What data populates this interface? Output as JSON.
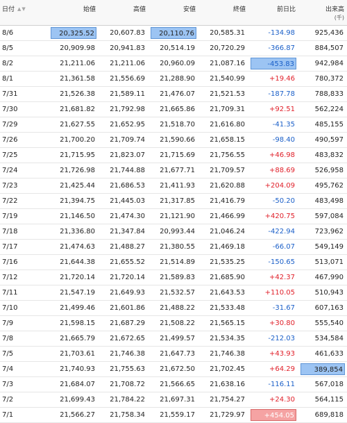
{
  "header": {
    "date": "日付",
    "open": "始値",
    "high": "高値",
    "low": "安値",
    "close": "終値",
    "change": "前日比",
    "volume": "出来高",
    "volume_unit": "(千)"
  },
  "rows": [
    {
      "date": "8/6",
      "open": "20,325.52",
      "high": "20,607.83",
      "low": "20,110.76",
      "close": "20,585.31",
      "change": "-134.98",
      "volume": "925,436"
    },
    {
      "date": "8/5",
      "open": "20,909.98",
      "high": "20,941.83",
      "low": "20,514.19",
      "close": "20,720.29",
      "change": "-366.87",
      "volume": "884,507"
    },
    {
      "date": "8/2",
      "open": "21,211.06",
      "high": "21,211.06",
      "low": "20,960.09",
      "close": "21,087.16",
      "change": "-453.83",
      "volume": "942,984"
    },
    {
      "date": "8/1",
      "open": "21,361.58",
      "high": "21,556.69",
      "low": "21,288.90",
      "close": "21,540.99",
      "change": "+19.46",
      "volume": "780,372"
    },
    {
      "date": "7/31",
      "open": "21,526.38",
      "high": "21,589.11",
      "low": "21,476.07",
      "close": "21,521.53",
      "change": "-187.78",
      "volume": "788,833"
    },
    {
      "date": "7/30",
      "open": "21,681.82",
      "high": "21,792.98",
      "low": "21,665.86",
      "close": "21,709.31",
      "change": "+92.51",
      "volume": "562,224"
    },
    {
      "date": "7/29",
      "open": "21,627.55",
      "high": "21,652.95",
      "low": "21,518.70",
      "close": "21,616.80",
      "change": "-41.35",
      "volume": "485,155"
    },
    {
      "date": "7/26",
      "open": "21,700.20",
      "high": "21,709.74",
      "low": "21,590.66",
      "close": "21,658.15",
      "change": "-98.40",
      "volume": "490,597"
    },
    {
      "date": "7/25",
      "open": "21,715.95",
      "high": "21,823.07",
      "low": "21,715.69",
      "close": "21,756.55",
      "change": "+46.98",
      "volume": "483,832"
    },
    {
      "date": "7/24",
      "open": "21,726.98",
      "high": "21,744.88",
      "low": "21,677.71",
      "close": "21,709.57",
      "change": "+88.69",
      "volume": "526,958"
    },
    {
      "date": "7/23",
      "open": "21,425.44",
      "high": "21,686.53",
      "low": "21,411.93",
      "close": "21,620.88",
      "change": "+204.09",
      "volume": "495,762"
    },
    {
      "date": "7/22",
      "open": "21,394.75",
      "high": "21,445.03",
      "low": "21,317.85",
      "close": "21,416.79",
      "change": "-50.20",
      "volume": "483,498"
    },
    {
      "date": "7/19",
      "open": "21,146.50",
      "high": "21,474.30",
      "low": "21,121.90",
      "close": "21,466.99",
      "change": "+420.75",
      "volume": "597,084"
    },
    {
      "date": "7/18",
      "open": "21,336.80",
      "high": "21,347.84",
      "low": "20,993.44",
      "close": "21,046.24",
      "change": "-422.94",
      "volume": "723,962"
    },
    {
      "date": "7/17",
      "open": "21,474.63",
      "high": "21,488.27",
      "low": "21,380.55",
      "close": "21,469.18",
      "change": "-66.07",
      "volume": "549,149"
    },
    {
      "date": "7/16",
      "open": "21,644.38",
      "high": "21,655.52",
      "low": "21,514.89",
      "close": "21,535.25",
      "change": "-150.65",
      "volume": "513,071"
    },
    {
      "date": "7/12",
      "open": "21,720.14",
      "high": "21,720.14",
      "low": "21,589.83",
      "close": "21,685.90",
      "change": "+42.37",
      "volume": "467,990"
    },
    {
      "date": "7/11",
      "open": "21,547.19",
      "high": "21,649.93",
      "low": "21,532.57",
      "close": "21,643.53",
      "change": "+110.05",
      "volume": "510,943"
    },
    {
      "date": "7/10",
      "open": "21,499.46",
      "high": "21,601.86",
      "low": "21,488.22",
      "close": "21,533.48",
      "change": "-31.67",
      "volume": "607,163"
    },
    {
      "date": "7/9",
      "open": "21,598.15",
      "high": "21,687.29",
      "low": "21,508.22",
      "close": "21,565.15",
      "change": "+30.80",
      "volume": "555,540"
    },
    {
      "date": "7/8",
      "open": "21,665.79",
      "high": "21,672.65",
      "low": "21,499.57",
      "close": "21,534.35",
      "change": "-212.03",
      "volume": "534,584"
    },
    {
      "date": "7/5",
      "open": "21,703.61",
      "high": "21,746.38",
      "low": "21,647.73",
      "close": "21,746.38",
      "change": "+43.93",
      "volume": "461,633"
    },
    {
      "date": "7/4",
      "open": "21,740.93",
      "high": "21,755.63",
      "low": "21,672.50",
      "close": "21,702.45",
      "change": "+64.29",
      "volume": "389,854"
    },
    {
      "date": "7/3",
      "open": "21,684.07",
      "high": "21,708.72",
      "low": "21,566.65",
      "close": "21,638.16",
      "change": "-116.11",
      "volume": "567,018"
    },
    {
      "date": "7/2",
      "open": "21,699.43",
      "high": "21,784.22",
      "low": "21,697.31",
      "close": "21,754.27",
      "change": "+24.30",
      "volume": "564,115"
    },
    {
      "date": "7/1",
      "open": "21,566.27",
      "high": "21,758.34",
      "low": "21,559.17",
      "close": "21,729.97",
      "change": "+454.05",
      "volume": "689,818"
    }
  ],
  "highlights": {
    "open": [
      "8/6"
    ],
    "low": [
      "8/6"
    ],
    "change_neg": [
      "8/2"
    ],
    "change_pos": [
      "7/1"
    ],
    "volume": [
      "7/4"
    ]
  },
  "colors": {
    "positive": "#e0202a",
    "negative": "#1a5fc8",
    "highlight_blue": "#9cc4f3",
    "highlight_red": "#f5a3a3"
  }
}
